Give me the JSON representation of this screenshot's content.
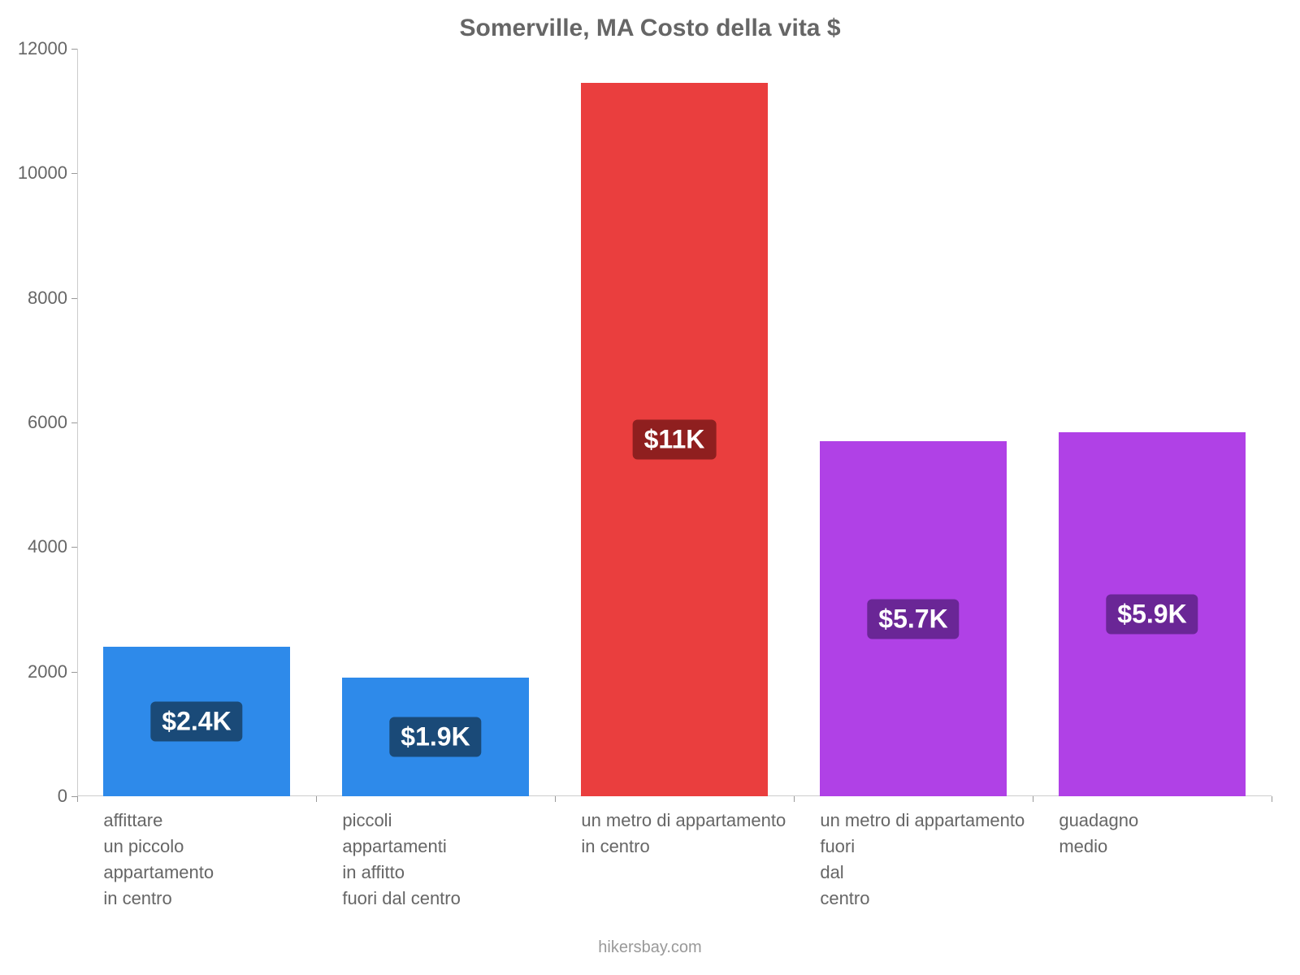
{
  "chart": {
    "type": "bar",
    "title": "Somerville, MA Costo della vita $",
    "title_fontsize": 30,
    "title_color": "#666666",
    "background_color": "#ffffff",
    "axis_color": "#cccccc",
    "tick_color": "#999999",
    "tick_label_color": "#666666",
    "tick_label_fontsize": 22,
    "ylim": [
      0,
      12000
    ],
    "yticks": [
      0,
      2000,
      4000,
      6000,
      8000,
      10000,
      12000
    ],
    "bar_width_ratio": 0.78,
    "bar_label_fontsize": 32,
    "category_label_fontsize": 22,
    "category_label_color": "#666666",
    "categories": [
      {
        "lines": [
          "affittare",
          "un piccolo",
          "appartamento",
          "in centro"
        ],
        "value": 2400,
        "display": "$2.4K",
        "bar_color": "#2e8aea",
        "label_bg": "#1a4a78"
      },
      {
        "lines": [
          "piccoli",
          "appartamenti",
          "in affitto",
          "fuori dal centro"
        ],
        "value": 1900,
        "display": "$1.9K",
        "bar_color": "#2e8aea",
        "label_bg": "#1a4a78"
      },
      {
        "lines": [
          "un metro di appartamento",
          "in centro"
        ],
        "value": 11450,
        "display": "$11K",
        "bar_color": "#ea3e3e",
        "label_bg": "#8f1f1f"
      },
      {
        "lines": [
          "un metro di appartamento",
          "fuori",
          "dal",
          "centro"
        ],
        "value": 5700,
        "display": "$5.7K",
        "bar_color": "#b041e6",
        "label_bg": "#6a2696"
      },
      {
        "lines": [
          "guadagno",
          "medio"
        ],
        "value": 5850,
        "display": "$5.9K",
        "bar_color": "#b041e6",
        "label_bg": "#6a2696"
      }
    ],
    "credit": "hikersbay.com",
    "credit_color": "#999999",
    "credit_fontsize": 20
  }
}
